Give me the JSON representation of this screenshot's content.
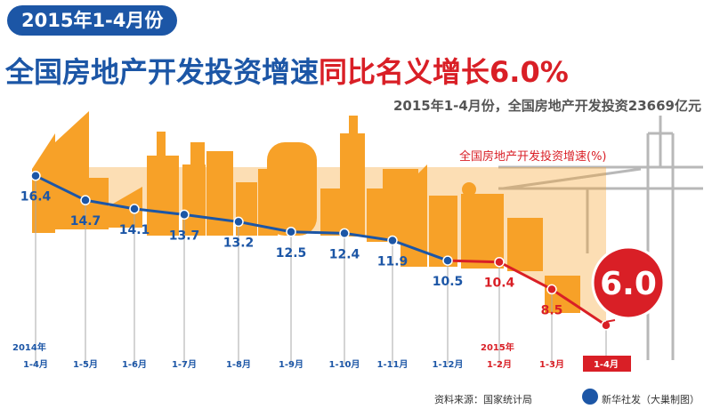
{
  "header": {
    "badge": "2015年1-4月份",
    "title_blue": "全国房地产开发投资增速",
    "title_red": "同比名义增长6.0%",
    "subtitle": "2015年1-4月份，全国房地产开发投资23669亿元"
  },
  "chart_data": {
    "type": "line",
    "title": "全国房地产开发投资增速同比名义增长6.0%",
    "legend": "全国房地产开发投资增速(%)",
    "year_labels": [
      "2014年",
      "2015年"
    ],
    "categories": [
      "1-4月",
      "1-5月",
      "1-6月",
      "1-7月",
      "1-8月",
      "1-9月",
      "1-10月",
      "1-11月",
      "1-12月",
      "1-2月",
      "1-3月",
      "1-4月"
    ],
    "values": [
      16.4,
      14.7,
      14.1,
      13.7,
      13.2,
      12.5,
      12.4,
      11.9,
      10.5,
      10.4,
      8.5,
      6.0
    ],
    "value_labels": [
      "16.4",
      "14.7",
      "14.1",
      "13.7",
      "13.2",
      "12.5",
      "12.4",
      "11.9",
      "10.5",
      "10.4",
      "8.5",
      "6.0"
    ],
    "highlight_label": "6.0",
    "ylim": [
      5,
      17
    ],
    "colors": {
      "blue": "#1c56a6",
      "red": "#d91f26",
      "orange": "#f7a128",
      "grey": "#aaaaaa"
    }
  },
  "footer": {
    "source": "资料来源：国家统计局",
    "agency": "新华社发（大巢制图）"
  }
}
